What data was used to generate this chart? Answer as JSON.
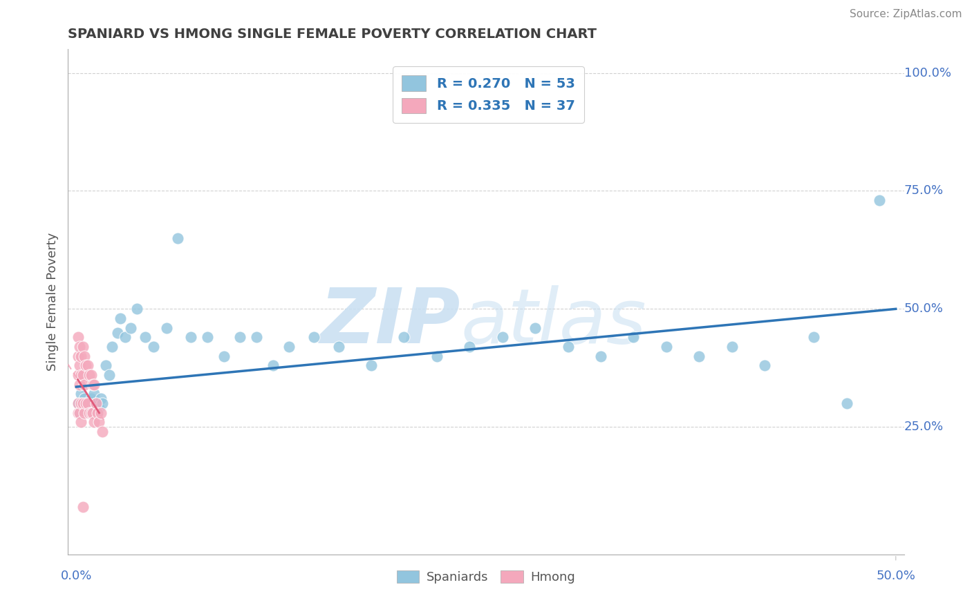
{
  "title": "SPANIARD VS HMONG SINGLE FEMALE POVERTY CORRELATION CHART",
  "source": "Source: ZipAtlas.com",
  "ylabel": "Single Female Poverty",
  "watermark_zip": "ZIP",
  "watermark_atlas": "atlas",
  "legend_spaniards_label": "Spaniards",
  "legend_hmong_label": "Hmong",
  "R_spaniard": "R = 0.270",
  "N_spaniard": "N = 53",
  "R_hmong": "R = 0.335",
  "N_hmong": "N = 37",
  "spaniard_color": "#92C5DE",
  "hmong_color": "#F4A8BC",
  "trend_spaniard_color": "#2E75B6",
  "trend_hmong_color": "#E05A7A",
  "trend_hmong_dashed_color": "#F4A8BC",
  "grid_color": "#CCCCCC",
  "title_color": "#404040",
  "legend_text_color": "#2E75B6",
  "ytick_color": "#4472C4",
  "spaniard_x": [
    0.001,
    0.002,
    0.003,
    0.004,
    0.005,
    0.006,
    0.007,
    0.008,
    0.009,
    0.01,
    0.011,
    0.012,
    0.013,
    0.014,
    0.015,
    0.016,
    0.018,
    0.02,
    0.022,
    0.025,
    0.027,
    0.03,
    0.033,
    0.037,
    0.042,
    0.047,
    0.055,
    0.062,
    0.07,
    0.08,
    0.09,
    0.1,
    0.11,
    0.12,
    0.13,
    0.145,
    0.16,
    0.18,
    0.2,
    0.22,
    0.24,
    0.26,
    0.28,
    0.3,
    0.32,
    0.34,
    0.36,
    0.38,
    0.4,
    0.42,
    0.45,
    0.47,
    0.49
  ],
  "spaniard_y": [
    0.3,
    0.28,
    0.32,
    0.29,
    0.31,
    0.28,
    0.3,
    0.29,
    0.31,
    0.28,
    0.32,
    0.3,
    0.28,
    0.29,
    0.31,
    0.3,
    0.38,
    0.36,
    0.42,
    0.45,
    0.48,
    0.44,
    0.46,
    0.5,
    0.44,
    0.42,
    0.46,
    0.65,
    0.44,
    0.44,
    0.4,
    0.44,
    0.44,
    0.38,
    0.42,
    0.44,
    0.42,
    0.38,
    0.44,
    0.4,
    0.42,
    0.44,
    0.46,
    0.42,
    0.4,
    0.44,
    0.42,
    0.4,
    0.42,
    0.38,
    0.44,
    0.3,
    0.73
  ],
  "hmong_x": [
    0.001,
    0.001,
    0.001,
    0.001,
    0.001,
    0.002,
    0.002,
    0.002,
    0.002,
    0.003,
    0.003,
    0.003,
    0.003,
    0.004,
    0.004,
    0.004,
    0.005,
    0.005,
    0.005,
    0.006,
    0.006,
    0.007,
    0.007,
    0.008,
    0.008,
    0.009,
    0.009,
    0.01,
    0.01,
    0.011,
    0.011,
    0.012,
    0.013,
    0.014,
    0.015,
    0.016,
    0.004
  ],
  "hmong_y": [
    0.44,
    0.4,
    0.36,
    0.3,
    0.28,
    0.42,
    0.38,
    0.34,
    0.28,
    0.4,
    0.36,
    0.3,
    0.26,
    0.42,
    0.36,
    0.3,
    0.4,
    0.34,
    0.28,
    0.38,
    0.3,
    0.38,
    0.3,
    0.36,
    0.28,
    0.36,
    0.28,
    0.34,
    0.28,
    0.34,
    0.26,
    0.3,
    0.28,
    0.26,
    0.28,
    0.24,
    0.08
  ],
  "xlim": [
    -0.005,
    0.505
  ],
  "ylim": [
    -0.02,
    1.05
  ],
  "yticks": [
    0.25,
    0.5,
    0.75,
    1.0
  ],
  "ytick_labels": [
    "25.0%",
    "50.0%",
    "75.0%",
    "100.0%"
  ],
  "xtick_left_label": "0.0%",
  "xtick_right_label": "50.0%",
  "figsize": [
    14.06,
    8.92
  ],
  "dpi": 100
}
